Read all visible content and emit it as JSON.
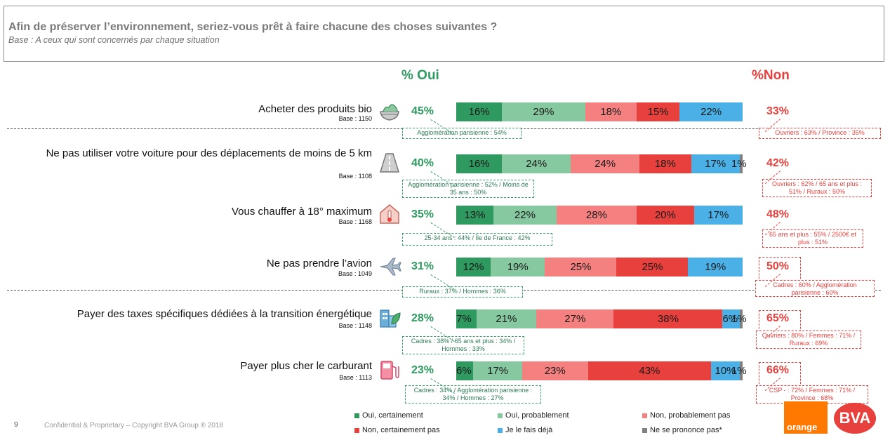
{
  "header": {
    "title": "Afin de préserver l’environnement, seriez-vous prêt à faire chacune des choses suivantes ?",
    "subtitle": "Base : A ceux qui sont concernés par chaque situation",
    "yes_header": "% Oui",
    "no_header": "%Non"
  },
  "colors": {
    "oui_certainement": "#2e9a5f",
    "oui_probablement": "#86c8a0",
    "non_probablement_pas": "#f58080",
    "non_certainement_pas": "#e8403c",
    "je_le_fais_deja": "#4bb0e6",
    "ne_se_prononce_pas": "#808080"
  },
  "chart_data": {
    "type": "bar",
    "orientation": "horizontal-stacked",
    "categories": [
      "Acheter des produits bio",
      "Ne pas utiliser votre voiture pour des déplacements de moins de 5 km",
      "Vous chauffer à 18° maximum",
      "Ne pas prendre l’avion",
      "Payer des taxes spécifiques dédiées à la transition énergétique",
      "Payer plus cher le carburant"
    ],
    "series": [
      {
        "name": "Oui, certainement",
        "values": [
          16,
          16,
          13,
          12,
          7,
          6
        ]
      },
      {
        "name": "Oui, probablement",
        "values": [
          29,
          24,
          22,
          19,
          21,
          17
        ]
      },
      {
        "name": "Non, probablement pas",
        "values": [
          18,
          24,
          28,
          25,
          27,
          23
        ]
      },
      {
        "name": "Non, certainement pas",
        "values": [
          15,
          18,
          20,
          25,
          38,
          43
        ]
      },
      {
        "name": "Je le fais déjà",
        "values": [
          22,
          17,
          17,
          19,
          6,
          10
        ]
      },
      {
        "name": "Ne se prononce pas*",
        "values": [
          0,
          1,
          0,
          0,
          1,
          1
        ]
      }
    ]
  },
  "rows": [
    {
      "label": "Acheter des produits bio",
      "base": "Base : 1150",
      "icon": "salad-bowl-icon",
      "yes_pct": "45%",
      "no_pct": "33%",
      "segment_labels": [
        "16%",
        "29%",
        "18%",
        "15%",
        "22%",
        ""
      ],
      "note_yes": "Agglomération parisienne : 54%",
      "note_no": "Ouvriers : 63% / Province : 35%"
    },
    {
      "label": "Ne pas utiliser votre voiture pour des déplacements de moins de 5 km",
      "base": "Base : 1108",
      "icon": "road-icon",
      "yes_pct": "40%",
      "no_pct": "42%",
      "segment_labels": [
        "16%",
        "24%",
        "24%",
        "18%",
        "17%",
        "1%"
      ],
      "note_yes": "Agglomération parisienne : 52% / Moins de 35 ans : 50%",
      "note_no": "Ouvriers : 62% / 65 ans et plus : 51% / Ruraux : 50%"
    },
    {
      "label": "Vous chauffer à 18° maximum",
      "base": "Base : 1168",
      "icon": "house-thermometer-icon",
      "yes_pct": "35%",
      "no_pct": "48%",
      "segment_labels": [
        "13%",
        "22%",
        "28%",
        "20%",
        "17%",
        ""
      ],
      "note_yes": "25-34 ans : 44% / Île de France : 42%",
      "note_no": "65 ans et plus : 55% / 2500€ et plus : 51%"
    },
    {
      "label": "Ne pas prendre l’avion",
      "base": "Base : 1049",
      "icon": "airplane-icon",
      "yes_pct": "31%",
      "no_pct": "50%",
      "segment_labels": [
        "12%",
        "19%",
        "25%",
        "25%",
        "19%",
        ""
      ],
      "note_yes": "Ruraux : 37% / Hommes : 36%",
      "note_no": "Cadres : 60% / Agglomération parisienne : 60%"
    },
    {
      "label": "Payer des taxes spécifiques dédiées à la transition énergétique",
      "base": "Base : 1148",
      "icon": "green-building-icon",
      "yes_pct": "28%",
      "no_pct": "65%",
      "segment_labels": [
        "7%",
        "21%",
        "27%",
        "38%",
        "6%",
        "1%"
      ],
      "note_yes": "Cadres : 38% / 65 ans et plus : 34% / Hommes : 33%",
      "note_no": "Ouvriers : 80% / Femmes : 71% / Ruraux : 69%"
    },
    {
      "label": "Payer plus cher le carburant",
      "base": "Base : 1113",
      "icon": "fuel-pump-icon",
      "yes_pct": "23%",
      "no_pct": "66%",
      "segment_labels": [
        "6%",
        "17%",
        "23%",
        "43%",
        "10%",
        "1%"
      ],
      "note_yes": "Cadres : 34% / Agglomération parisienne : 34% / Hommes : 27%",
      "note_no": "CSP - : 72% / Femmes : 71% / Province : 68%"
    }
  ],
  "legend": [
    {
      "label": "Oui, certainement",
      "color": "#2e9a5f"
    },
    {
      "label": "Oui, probablement",
      "color": "#86c8a0"
    },
    {
      "label": "Non, probablement pas",
      "color": "#f58080"
    },
    {
      "label": "Non, certainement pas",
      "color": "#e8403c"
    },
    {
      "label": "Je le fais déjà",
      "color": "#4bb0e6"
    },
    {
      "label": "Ne se prononce pas*",
      "color": "#808080"
    }
  ],
  "footer": {
    "page": "9",
    "confidential": "Confidential & Proprietary – Copyright BVA Group ® 2018",
    "logo_orange": "orange",
    "logo_bva": "BVA"
  }
}
